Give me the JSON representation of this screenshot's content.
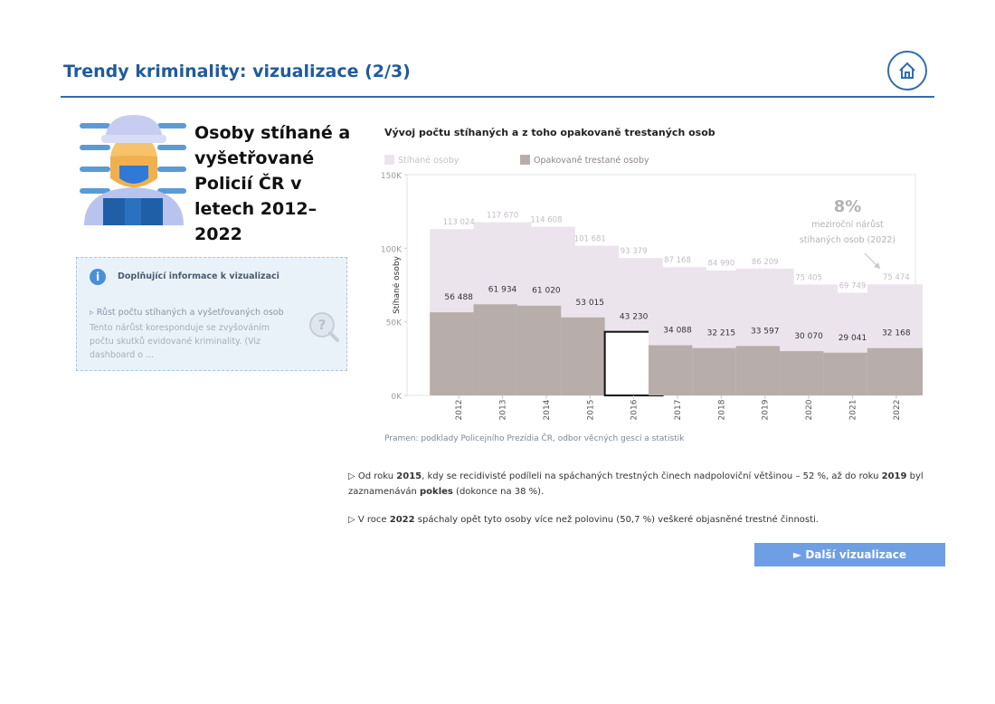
{
  "header": {
    "title": "Trendy kriminality: vizualizace (2/3)"
  },
  "hero": {
    "title": "Osoby stíhané a vyšetřované Policií ČR v letech 2012–2022"
  },
  "info_box": {
    "heading": "Doplňující informace k vizualizaci",
    "item_title": "▹ Růst počtu stíhaných a vyšetřovaných osob",
    "item_text": "Tento nárůst koresponduje se zvyšováním počtu skutků evidované kriminality. (Viz dashboard o ..."
  },
  "chart_data": {
    "type": "bar",
    "title": "Vývoj počtu stíhaných a z toho opakovaně trestaných osob",
    "ylabel": "Stíhané osoby",
    "ylim": [
      0,
      150000
    ],
    "yticks": [
      "0K",
      "50K",
      "100K",
      "150K"
    ],
    "categories": [
      "2012",
      "2013",
      "2014",
      "2015",
      "2016",
      "2017",
      "2018",
      "2019",
      "2020",
      "2021",
      "2022"
    ],
    "series": [
      {
        "name": "Stíhané osoby",
        "color": "#ebe4ec",
        "values": [
          113024,
          117670,
          114608,
          101681,
          93379,
          87168,
          84990,
          86209,
          75405,
          69749,
          75474
        ],
        "labels": [
          "113 024",
          "117 670",
          "114 608",
          "101 681",
          "93 379",
          "87 168",
          "84 990",
          "86 209",
          "75 405",
          "69 749",
          "75 474"
        ]
      },
      {
        "name": "Opakovaně trestané osoby",
        "color": "#b7aeab",
        "values": [
          56488,
          61934,
          61020,
          53015,
          43230,
          34088,
          32215,
          33597,
          30070,
          29041,
          32168
        ],
        "labels": [
          "56 488",
          "61 934",
          "61 020",
          "53 015",
          "43 230",
          "34 088",
          "32 215",
          "33 597",
          "30 070",
          "29 041",
          "32 168"
        ]
      }
    ],
    "highlighted_category": "2016",
    "annotation": {
      "value": "8%",
      "text1": "meziroční nárůst",
      "text2": "stíhaných osob (2022)"
    }
  },
  "source": "Pramen: podklady Policejního Prezídia ČR, odbor věcných gescí a statistik",
  "notes": {
    "n1_prefix": "▷ Od roku ",
    "n1_year": "2015",
    "n1_mid": ", kdy se recidivisté podíleli na spáchaných trestných činech nadpoloviční většinou – 52 %, až do roku ",
    "n1_year2": "2019",
    "n1_mid2": " byl zaznamenáván ",
    "n1_bold": "pokles",
    "n1_end": " (dokonce na 38 %).",
    "n2_prefix": "▷ V roce ",
    "n2_year": "2022",
    "n2_text": " spáchaly opět tyto osoby více než polovinu (50,7 %) veškeré objasněné trestné činnosti."
  },
  "next_button": {
    "label": "► Další vizualizace"
  },
  "colors": {
    "accent": "#2f6db0",
    "button": "#6e9ee3"
  }
}
